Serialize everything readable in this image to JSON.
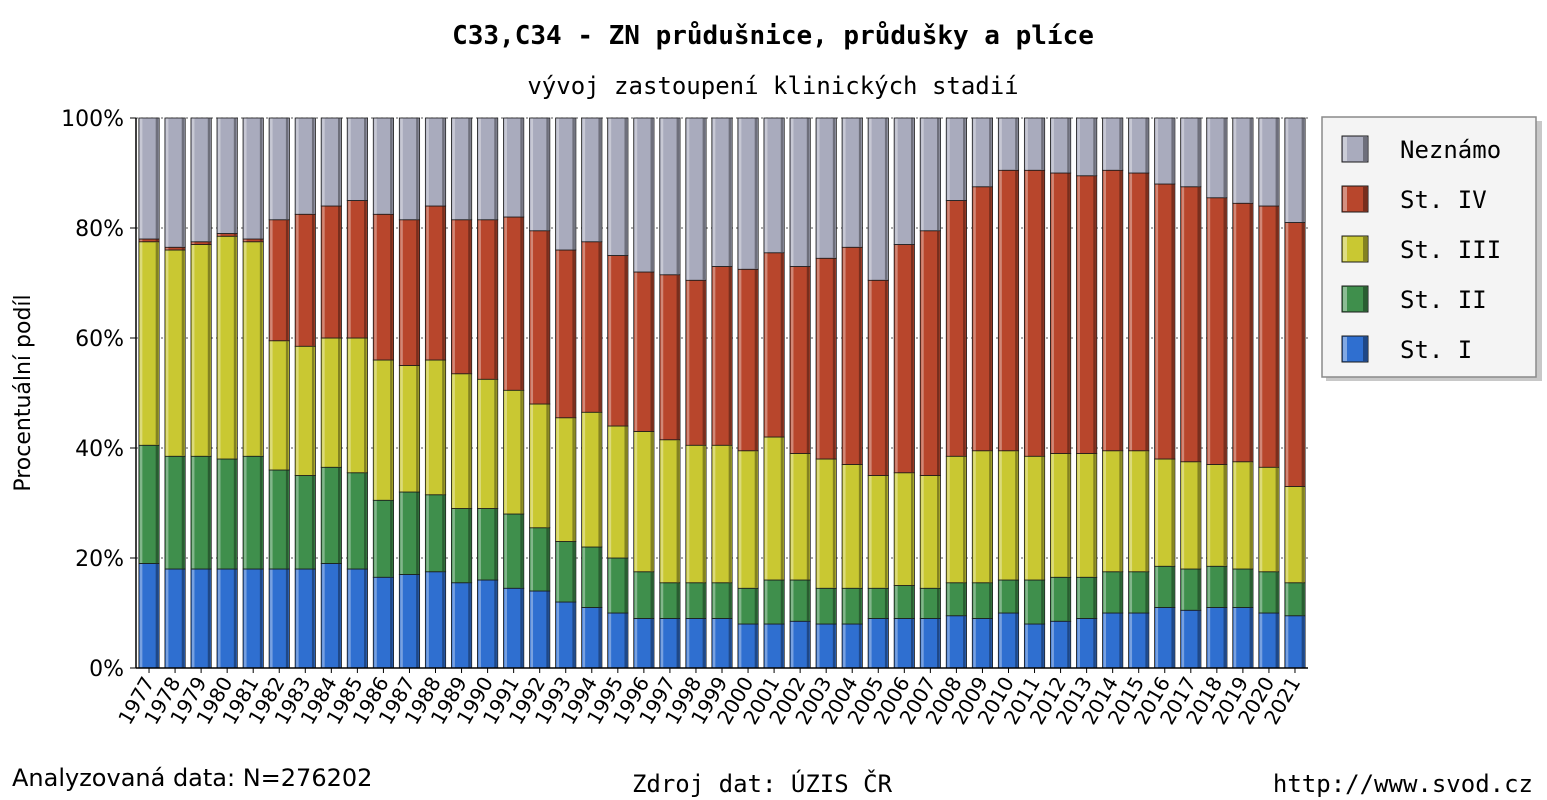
{
  "title": "C33,C34 - ZN průdušnice, průdušky a plíce",
  "subtitle": "vývoj zastoupení klinických stadií",
  "footer": {
    "left": "Analyzovaná data: N=276202",
    "center": "Zdroj dat: ÚZIS ČR",
    "right": "http://www.svod.cz"
  },
  "colors": {
    "St. I": "#2f6fd0",
    "St. II": "#3f8f4c",
    "St. III": "#c9c832",
    "St. IV": "#b8462c",
    "Neznámo": "#a9abbd"
  },
  "chart_data": {
    "type": "bar",
    "stacked": true,
    "percent": true,
    "ylabel": "Procentuální podíl",
    "xlabel": "",
    "ylim": [
      0,
      100
    ],
    "yticks": [
      "0%",
      "20%",
      "40%",
      "60%",
      "80%",
      "100%"
    ],
    "legend_position": "right",
    "categories": [
      "1977",
      "1978",
      "1979",
      "1980",
      "1981",
      "1982",
      "1983",
      "1984",
      "1985",
      "1986",
      "1987",
      "1988",
      "1989",
      "1990",
      "1991",
      "1992",
      "1993",
      "1994",
      "1995",
      "1996",
      "1997",
      "1998",
      "1999",
      "2000",
      "2001",
      "2002",
      "2003",
      "2004",
      "2005",
      "2006",
      "2007",
      "2008",
      "2009",
      "2010",
      "2011",
      "2012",
      "2013",
      "2014",
      "2015",
      "2016",
      "2017",
      "2018",
      "2019",
      "2020",
      "2021"
    ],
    "series": [
      {
        "name": "St. I",
        "values": [
          19,
          18,
          18,
          18,
          18,
          18,
          18,
          19,
          18,
          16.5,
          17,
          17.5,
          15.5,
          16,
          14.5,
          14,
          12,
          11,
          10,
          9,
          9,
          9,
          9,
          8,
          8,
          8.5,
          8,
          8,
          9,
          9,
          9,
          9.5,
          9,
          10,
          8,
          8.5,
          9,
          10,
          10,
          11,
          10.5,
          11,
          11,
          10,
          9.5
        ]
      },
      {
        "name": "St. II",
        "values": [
          21.5,
          20.5,
          20.5,
          20,
          20.5,
          18,
          17,
          17.5,
          17.5,
          14,
          15,
          14,
          13.5,
          13,
          13.5,
          11.5,
          11,
          11,
          10,
          8.5,
          6.5,
          6.5,
          6.5,
          6.5,
          8,
          7.5,
          6.5,
          6.5,
          5.5,
          6,
          5.5,
          6,
          6.5,
          6,
          8,
          8,
          7.5,
          7.5,
          7.5,
          7.5,
          7.5,
          7.5,
          7,
          7.5,
          6
        ]
      },
      {
        "name": "St. III",
        "values": [
          37,
          37.5,
          38.5,
          40.5,
          39,
          23.5,
          23.5,
          23.5,
          24.5,
          25.5,
          23,
          24.5,
          24.5,
          23.5,
          22.5,
          22.5,
          22.5,
          24.5,
          24,
          25.5,
          26,
          25,
          25,
          25,
          26,
          23,
          23.5,
          22.5,
          20.5,
          20.5,
          20.5,
          23,
          24,
          23.5,
          22.5,
          22.5,
          22.5,
          22,
          22,
          19.5,
          19.5,
          18.5,
          19.5,
          19,
          17.5
        ]
      },
      {
        "name": "St. IV",
        "values": [
          0.5,
          0.5,
          0.5,
          0.5,
          0.5,
          22,
          24,
          24,
          25,
          26.5,
          26.5,
          28,
          28,
          29,
          31.5,
          31.5,
          30.5,
          31,
          31,
          29,
          30,
          30,
          32.5,
          33,
          33.5,
          34,
          36.5,
          39.5,
          35.5,
          41.5,
          44.5,
          46.5,
          48,
          51,
          52,
          51,
          50.5,
          51,
          50.5,
          50,
          50,
          48.5,
          47,
          47.5,
          48
        ]
      },
      {
        "name": "Neznámo",
        "values": [
          22,
          23.5,
          22.5,
          21,
          22,
          18.5,
          17.5,
          16,
          15,
          17.5,
          18.5,
          16,
          18.5,
          18.5,
          18,
          20.5,
          24,
          22.5,
          25,
          28,
          28.5,
          29.5,
          27,
          27.5,
          24.5,
          27,
          25.5,
          23.5,
          29.5,
          23,
          20.5,
          15,
          12.5,
          9.5,
          9.5,
          10,
          10.5,
          9.5,
          10,
          12,
          12.5,
          14.5,
          15.5,
          16,
          19
        ]
      }
    ]
  }
}
